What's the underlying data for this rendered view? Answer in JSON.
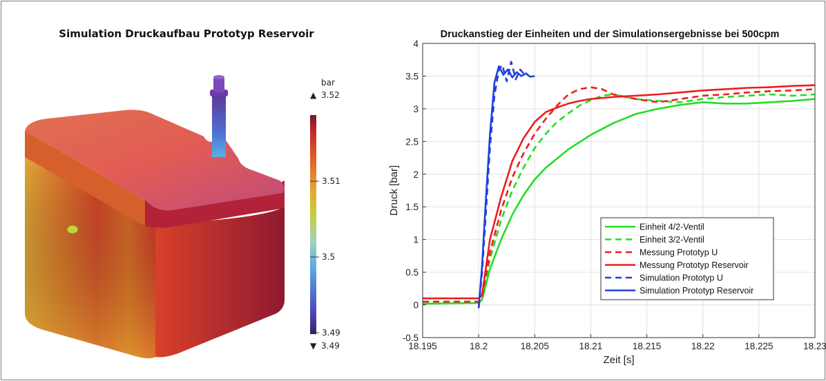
{
  "simulation": {
    "title": "Simulation Druckaufbau Prototyp Reservoir",
    "colorbar": {
      "unit": "bar",
      "max_marker": "3.52",
      "min_marker": "3.49",
      "ticks": [
        "3.51",
        "3.5",
        "3.49"
      ],
      "colors": [
        "#3b1f6e",
        "#4f4fc4",
        "#5aa9e0",
        "#9fd4b8",
        "#c8cc3a",
        "#e0a830",
        "#e0602a",
        "#c52a2a",
        "#7a1530"
      ]
    }
  },
  "chart_data": {
    "type": "line",
    "title": "Druckanstieg der Einheiten und der Simulationsergebnisse bei 500cpm",
    "xlabel": "Zeit [s]",
    "ylabel": "Druck [bar]",
    "xlim": [
      18.195,
      18.23
    ],
    "ylim": [
      -0.5,
      4
    ],
    "xticks": [
      "18.195",
      "18.2",
      "18.205",
      "18.21",
      "18.215",
      "18.22",
      "18.225",
      "18.23"
    ],
    "yticks": [
      "-0.5",
      "0",
      "0.5",
      "1",
      "1.5",
      "2",
      "2.5",
      "3",
      "3.5",
      "4"
    ],
    "grid": true,
    "legend_position": "bottom-right",
    "series": [
      {
        "name": "Einheit 4/2-Ventil",
        "color": "#22dd22",
        "dash": "solid",
        "x": [
          18.195,
          18.2,
          18.2003,
          18.201,
          18.202,
          18.203,
          18.204,
          18.205,
          18.206,
          18.208,
          18.21,
          18.212,
          18.214,
          18.216,
          18.218,
          18.22,
          18.222,
          18.224,
          18.226,
          18.228,
          18.23
        ],
        "y": [
          0.02,
          0.03,
          0.08,
          0.55,
          1.0,
          1.38,
          1.68,
          1.92,
          2.1,
          2.38,
          2.6,
          2.78,
          2.92,
          3.0,
          3.06,
          3.1,
          3.08,
          3.08,
          3.1,
          3.12,
          3.15
        ]
      },
      {
        "name": "Einheit 3/2-Ventil",
        "color": "#22dd22",
        "dash": "dashed",
        "x": [
          18.195,
          18.2,
          18.2003,
          18.201,
          18.202,
          18.203,
          18.204,
          18.205,
          18.206,
          18.207,
          18.208,
          18.209,
          18.21,
          18.211,
          18.212,
          18.214,
          18.216,
          18.218,
          18.22,
          18.222,
          18.224,
          18.226,
          18.228,
          18.23
        ],
        "y": [
          0.05,
          0.05,
          0.1,
          0.7,
          1.3,
          1.75,
          2.1,
          2.4,
          2.62,
          2.8,
          2.93,
          3.05,
          3.13,
          3.2,
          3.22,
          3.15,
          3.12,
          3.1,
          3.15,
          3.18,
          3.2,
          3.22,
          3.2,
          3.22
        ]
      },
      {
        "name": "Messung Prototyp U",
        "color": "#ee1c1c",
        "dash": "dashed",
        "x": [
          18.195,
          18.2,
          18.2003,
          18.201,
          18.202,
          18.203,
          18.204,
          18.205,
          18.206,
          18.207,
          18.208,
          18.209,
          18.21,
          18.211,
          18.212,
          18.214,
          18.216,
          18.218,
          18.22,
          18.222,
          18.224,
          18.226,
          18.228,
          18.23
        ],
        "y": [
          0.05,
          0.05,
          0.12,
          0.8,
          1.45,
          1.95,
          2.32,
          2.62,
          2.85,
          3.05,
          3.22,
          3.3,
          3.33,
          3.3,
          3.22,
          3.15,
          3.1,
          3.15,
          3.2,
          3.22,
          3.25,
          3.27,
          3.28,
          3.3
        ]
      },
      {
        "name": "Messung Prototyp Reservoir",
        "color": "#ee1c1c",
        "dash": "solid",
        "x": [
          18.195,
          18.2,
          18.2003,
          18.201,
          18.202,
          18.203,
          18.204,
          18.205,
          18.206,
          18.207,
          18.208,
          18.209,
          18.21,
          18.212,
          18.214,
          18.216,
          18.218,
          18.22,
          18.222,
          18.224,
          18.226,
          18.228,
          18.23
        ],
        "y": [
          0.1,
          0.1,
          0.15,
          1.0,
          1.65,
          2.2,
          2.55,
          2.8,
          2.95,
          3.02,
          3.08,
          3.12,
          3.15,
          3.18,
          3.2,
          3.22,
          3.25,
          3.28,
          3.3,
          3.32,
          3.33,
          3.35,
          3.36
        ]
      },
      {
        "name": "Simulation Prototyp U",
        "color": "#1f3fe0",
        "dash": "dashed",
        "x": [
          18.2,
          18.2003,
          18.2006,
          18.201,
          18.2014,
          18.2018,
          18.2021,
          18.2025,
          18.2029,
          18.2033,
          18.2037,
          18.2042
        ],
        "y": [
          -0.05,
          0.5,
          1.3,
          2.4,
          3.2,
          3.6,
          3.67,
          3.42,
          3.72,
          3.45,
          3.6,
          3.5
        ]
      },
      {
        "name": "Simulation Prototyp Reservoir",
        "color": "#1f3fe0",
        "dash": "solid",
        "x": [
          18.2,
          18.2003,
          18.2006,
          18.201,
          18.2014,
          18.2018,
          18.2022,
          18.2026,
          18.203,
          18.2034,
          18.2038,
          18.2042,
          18.2046,
          18.205
        ],
        "y": [
          -0.05,
          0.6,
          1.5,
          2.6,
          3.4,
          3.65,
          3.52,
          3.6,
          3.48,
          3.56,
          3.5,
          3.54,
          3.49,
          3.5
        ]
      }
    ]
  }
}
